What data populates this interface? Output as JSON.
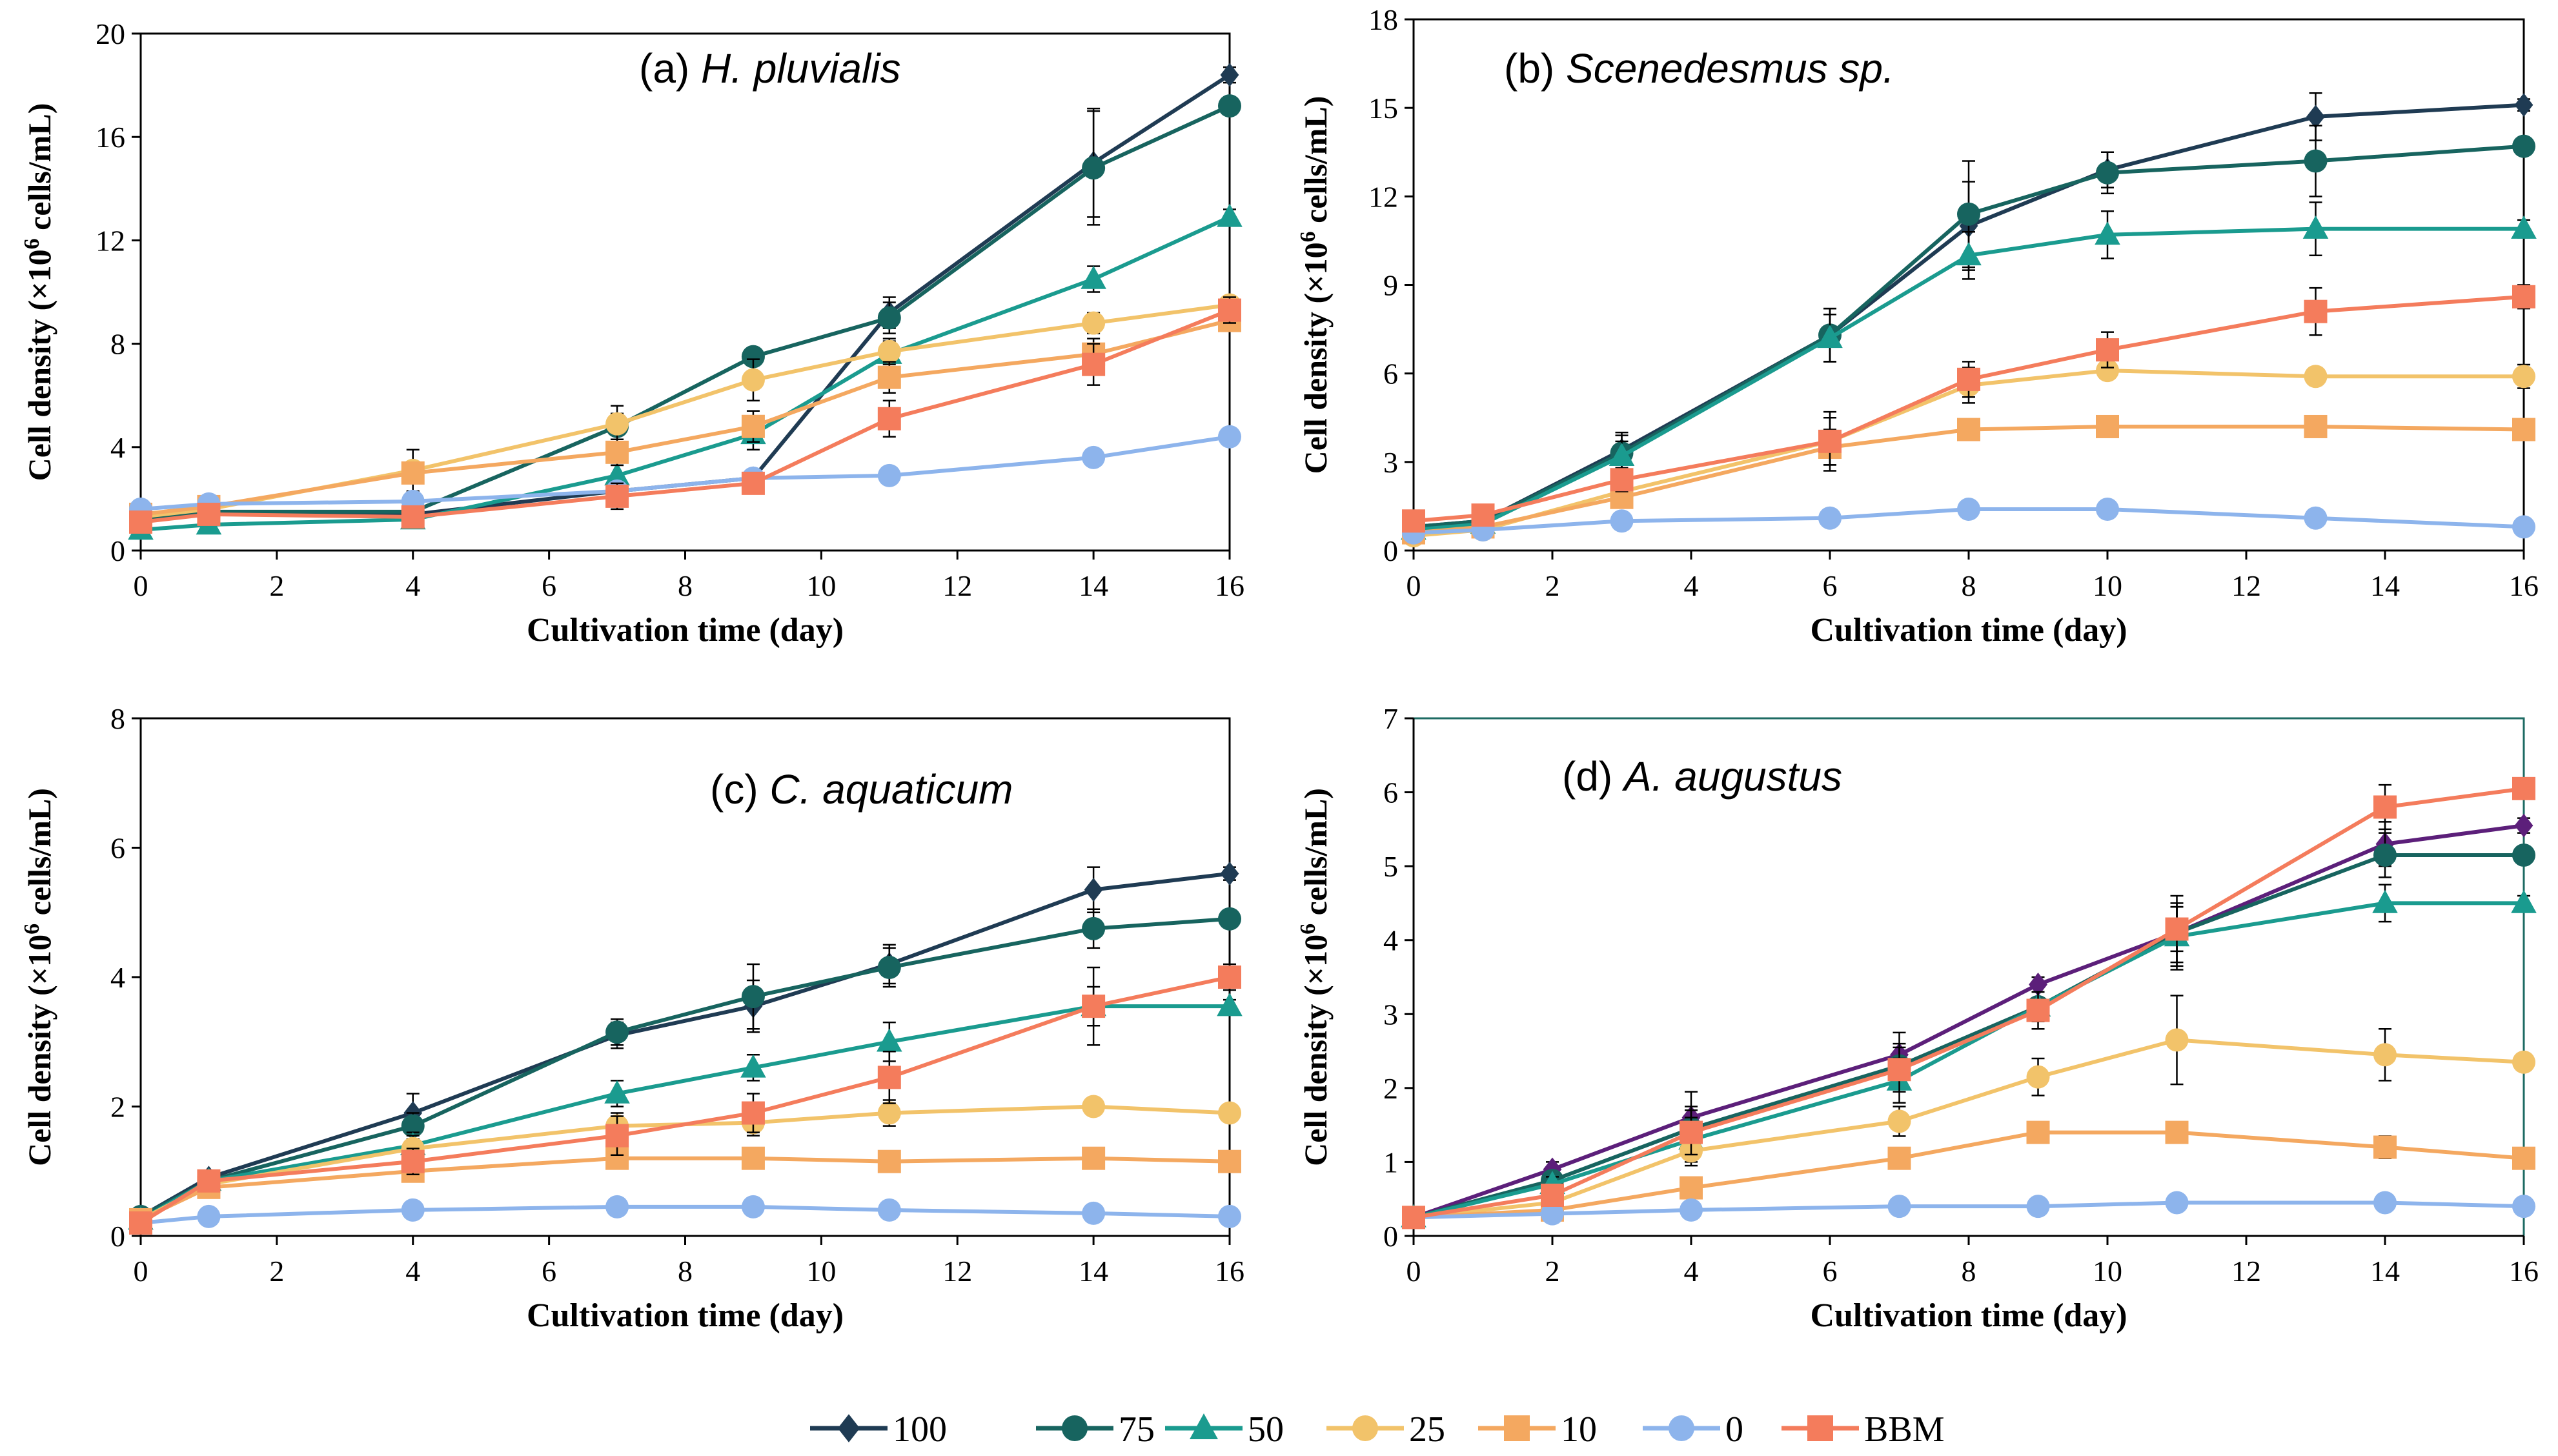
{
  "chart_data": [
    {
      "type": "line",
      "panel": "(a)",
      "title_prefix": "(a) ",
      "title_species": "H. pluvialis",
      "xlabel": "Cultivation time (day)",
      "ylabel_main": "Cell density (×10",
      "ylabel_sup": "6",
      "ylabel_end": " cells/mL)",
      "xlim": [
        0,
        16
      ],
      "ylim": [
        0,
        20
      ],
      "xticks": [
        0,
        2,
        4,
        6,
        8,
        10,
        12,
        14,
        16
      ],
      "yticks": [
        0,
        4,
        8,
        12,
        16,
        20
      ],
      "x": [
        0,
        1,
        4,
        7,
        9,
        11,
        14,
        16
      ],
      "series": [
        {
          "name": "100",
          "values": [
            1.1,
            1.5,
            1.4,
            2.3,
            2.8,
            9.2,
            15.0,
            18.4
          ],
          "err": [
            0.2,
            0.2,
            0.2,
            0.2,
            0.3,
            0.6,
            2.1,
            0.3
          ]
        },
        {
          "name": "75",
          "values": [
            1.2,
            1.5,
            1.5,
            4.8,
            7.5,
            9.0,
            14.8,
            17.2
          ],
          "err": [
            0.2,
            0.2,
            0.2,
            0.5,
            0.3,
            0.6,
            2.2,
            0.3
          ]
        },
        {
          "name": "50",
          "values": [
            0.8,
            1.0,
            1.2,
            2.9,
            4.5,
            7.6,
            10.5,
            12.9
          ],
          "err": [
            0.1,
            0.1,
            0.2,
            0.4,
            0.6,
            0.5,
            0.5,
            0.3
          ]
        },
        {
          "name": "25",
          "values": [
            1.3,
            1.6,
            3.1,
            4.9,
            6.6,
            7.7,
            8.8,
            9.5
          ],
          "err": [
            0.2,
            0.2,
            0.8,
            0.7,
            0.8,
            0.5,
            0.4,
            0.3
          ]
        },
        {
          "name": "10",
          "values": [
            1.4,
            1.7,
            3.0,
            3.8,
            4.8,
            6.7,
            7.6,
            8.9
          ],
          "err": [
            0.2,
            0.2,
            0.4,
            0.5,
            0.6,
            0.6,
            0.6,
            0.4
          ]
        },
        {
          "name": "0",
          "values": [
            1.6,
            1.8,
            1.9,
            2.3,
            2.8,
            2.9,
            3.6,
            4.4
          ],
          "err": [
            0.1,
            0.1,
            0.2,
            0.2,
            0.3,
            0.2,
            0.2,
            0.2
          ]
        },
        {
          "name": "BBM",
          "values": [
            1.1,
            1.4,
            1.3,
            2.1,
            2.6,
            5.1,
            7.2,
            9.3
          ],
          "err": [
            0.2,
            0.2,
            0.3,
            0.5,
            0.3,
            0.7,
            0.8,
            0.5
          ]
        }
      ]
    },
    {
      "type": "line",
      "panel": "(b)",
      "title_prefix": "(b) ",
      "title_species": "Scenedesmus sp.",
      "xlabel": "Cultivation time (day)",
      "ylabel_main": "Cell density (×10",
      "ylabel_sup": "6",
      "ylabel_end": " cells/mL)",
      "xlim": [
        0,
        16
      ],
      "ylim": [
        0,
        18
      ],
      "xticks": [
        0,
        2,
        4,
        6,
        8,
        10,
        12,
        14,
        16
      ],
      "yticks": [
        0,
        3,
        6,
        9,
        12,
        15,
        18
      ],
      "x": [
        0,
        1,
        3,
        6,
        8,
        10,
        13,
        16
      ],
      "series": [
        {
          "name": "100",
          "values": [
            0.8,
            1.0,
            3.4,
            7.3,
            11.0,
            12.9,
            14.7,
            15.1
          ],
          "err": [
            0.2,
            0.2,
            0.6,
            0.9,
            1.5,
            0.6,
            0.8,
            0.2
          ]
        },
        {
          "name": "75",
          "values": [
            0.8,
            1.0,
            3.3,
            7.3,
            11.4,
            12.8,
            13.2,
            13.7
          ],
          "err": [
            0.2,
            0.2,
            0.6,
            0.9,
            1.8,
            0.7,
            1.2,
            0.3
          ]
        },
        {
          "name": "50",
          "values": [
            0.7,
            0.9,
            3.2,
            7.2,
            10.0,
            10.7,
            10.9,
            10.9
          ],
          "err": [
            0.2,
            0.2,
            0.5,
            0.8,
            0.8,
            0.8,
            0.9,
            0.3
          ]
        },
        {
          "name": "25",
          "values": [
            0.5,
            0.7,
            2.0,
            3.7,
            5.6,
            6.1,
            5.9,
            5.9
          ],
          "err": [
            0.2,
            0.2,
            0.4,
            0.8,
            0.6,
            0.3,
            0.3,
            0.4
          ]
        },
        {
          "name": "10",
          "values": [
            0.6,
            0.8,
            1.8,
            3.5,
            4.1,
            4.2,
            4.2,
            4.1
          ],
          "err": [
            0.2,
            0.2,
            0.3,
            0.6,
            0.3,
            0.2,
            0.2,
            0.2
          ]
        },
        {
          "name": "0",
          "values": [
            0.6,
            0.7,
            1.0,
            1.1,
            1.4,
            1.4,
            1.1,
            0.8
          ],
          "err": [
            0.1,
            0.1,
            0.2,
            0.2,
            0.2,
            0.2,
            0.2,
            0.1
          ]
        },
        {
          "name": "BBM",
          "values": [
            1.0,
            1.2,
            2.4,
            3.7,
            5.8,
            6.8,
            8.1,
            8.6
          ],
          "err": [
            0.2,
            0.2,
            0.4,
            1.0,
            0.6,
            0.6,
            0.8,
            0.4
          ]
        }
      ]
    },
    {
      "type": "line",
      "panel": "(c)",
      "title_prefix": "(c) ",
      "title_species": "C. aquaticum",
      "xlabel": "Cultivation time (day)",
      "ylabel_main": "Cell density (×10",
      "ylabel_sup": "6",
      "ylabel_end": " cells/mL)",
      "xlim": [
        0,
        16
      ],
      "ylim": [
        0,
        8
      ],
      "xticks": [
        0,
        2,
        4,
        6,
        8,
        10,
        12,
        14,
        16
      ],
      "yticks": [
        0,
        2,
        4,
        6,
        8
      ],
      "x": [
        0,
        1,
        4,
        7,
        9,
        11,
        14,
        16
      ],
      "series": [
        {
          "name": "100",
          "values": [
            0.3,
            0.9,
            1.9,
            3.1,
            3.55,
            4.2,
            5.35,
            5.6
          ],
          "err": [
            0.05,
            0.1,
            0.3,
            0.2,
            0.4,
            0.3,
            0.35,
            0.1
          ]
        },
        {
          "name": "75",
          "values": [
            0.3,
            0.85,
            1.7,
            3.15,
            3.7,
            4.15,
            4.75,
            4.9
          ],
          "err": [
            0.05,
            0.1,
            0.2,
            0.2,
            0.5,
            0.3,
            0.3,
            0.1
          ]
        },
        {
          "name": "50",
          "values": [
            0.25,
            0.85,
            1.4,
            2.2,
            2.6,
            3.0,
            3.55,
            3.55
          ],
          "err": [
            0.05,
            0.1,
            0.2,
            0.2,
            0.2,
            0.3,
            0.3,
            0.1
          ]
        },
        {
          "name": "25",
          "values": [
            0.25,
            0.8,
            1.35,
            1.7,
            1.75,
            1.9,
            2.0,
            1.9
          ],
          "err": [
            0.05,
            0.1,
            0.2,
            0.2,
            0.2,
            0.2,
            0.1,
            0.1
          ]
        },
        {
          "name": "10",
          "values": [
            0.25,
            0.75,
            1.0,
            1.2,
            1.2,
            1.15,
            1.2,
            1.15
          ],
          "err": [
            0.05,
            0.1,
            0.1,
            0.1,
            0.1,
            0.1,
            0.1,
            0.1
          ]
        },
        {
          "name": "0",
          "values": [
            0.2,
            0.3,
            0.4,
            0.45,
            0.45,
            0.4,
            0.35,
            0.3
          ],
          "err": [
            0.05,
            0.05,
            0.05,
            0.05,
            0.05,
            0.05,
            0.05,
            0.05
          ]
        },
        {
          "name": "BBM",
          "values": [
            0.2,
            0.85,
            1.15,
            1.55,
            1.9,
            2.45,
            3.55,
            4.0
          ],
          "err": [
            0.05,
            0.1,
            0.2,
            0.3,
            0.3,
            0.4,
            0.6,
            0.2
          ]
        }
      ]
    },
    {
      "type": "line",
      "panel": "(d)",
      "title_prefix": "(d) ",
      "title_species": "A. augustus",
      "xlabel": "Cultivation time (day)",
      "ylabel_main": "Cell density (×10",
      "ylabel_sup": "6",
      "ylabel_end": " cells/mL)",
      "xlim": [
        0,
        16
      ],
      "ylim": [
        0,
        7
      ],
      "xticks": [
        0,
        2,
        4,
        6,
        8,
        10,
        12,
        14,
        16
      ],
      "yticks": [
        0,
        1,
        2,
        3,
        4,
        5,
        6,
        7
      ],
      "x": [
        0,
        2,
        4,
        7,
        9,
        11,
        14,
        16
      ],
      "series": [
        {
          "name": "100",
          "values": [
            0.25,
            0.9,
            1.6,
            2.45,
            3.4,
            4.1,
            5.3,
            5.55
          ],
          "err": [
            0.05,
            0.1,
            0.35,
            0.3,
            0.1,
            0.5,
            0.3,
            0.1
          ]
        },
        {
          "name": "75",
          "values": [
            0.25,
            0.75,
            1.45,
            2.3,
            3.1,
            4.1,
            5.15,
            5.15
          ],
          "err": [
            0.05,
            0.1,
            0.3,
            0.3,
            0.2,
            0.4,
            0.3,
            0.1
          ]
        },
        {
          "name": "50",
          "values": [
            0.25,
            0.7,
            1.3,
            2.1,
            3.1,
            4.05,
            4.5,
            4.5
          ],
          "err": [
            0.05,
            0.1,
            0.3,
            0.3,
            0.2,
            0.4,
            0.25,
            0.1
          ]
        },
        {
          "name": "25",
          "values": [
            0.25,
            0.45,
            1.15,
            1.55,
            2.15,
            2.65,
            2.45,
            2.35
          ],
          "err": [
            0.05,
            0.1,
            0.2,
            0.2,
            0.25,
            0.6,
            0.35,
            0.1
          ]
        },
        {
          "name": "10",
          "values": [
            0.25,
            0.35,
            0.65,
            1.05,
            1.4,
            1.4,
            1.2,
            1.05
          ],
          "err": [
            0.05,
            0.05,
            0.1,
            0.1,
            0.1,
            0.1,
            0.15,
            0.1
          ]
        },
        {
          "name": "0",
          "values": [
            0.25,
            0.3,
            0.35,
            0.4,
            0.4,
            0.45,
            0.45,
            0.4
          ],
          "err": [
            0.05,
            0.05,
            0.05,
            0.05,
            0.05,
            0.05,
            0.05,
            0.05
          ]
        },
        {
          "name": "BBM",
          "values": [
            0.25,
            0.55,
            1.4,
            2.25,
            3.05,
            4.15,
            5.8,
            6.05
          ],
          "err": [
            0.05,
            0.1,
            0.3,
            0.3,
            0.25,
            0.3,
            0.3,
            0.1
          ]
        }
      ]
    }
  ],
  "legend": [
    {
      "name": "100",
      "color": "#1f3b53",
      "marker": "diamond"
    },
    {
      "name": "75",
      "color": "#17645f",
      "marker": "circle"
    },
    {
      "name": "50",
      "color": "#1a9b8f",
      "marker": "triangle"
    },
    {
      "name": "25",
      "color": "#f2c36a",
      "marker": "circle"
    },
    {
      "name": "10",
      "color": "#f4a860",
      "marker": "square"
    },
    {
      "name": "0",
      "color": "#8db4ec",
      "marker": "circle"
    },
    {
      "name": "BBM",
      "color": "#f47c5c",
      "marker": "square"
    }
  ],
  "panel_d_series_100_color": "#5c1f7a"
}
